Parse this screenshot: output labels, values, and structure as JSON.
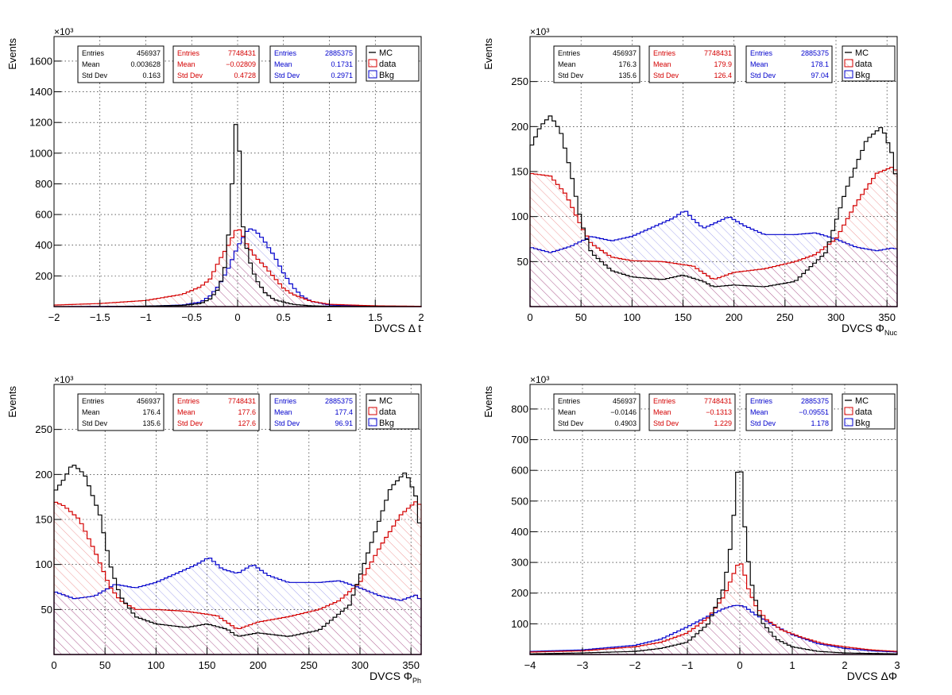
{
  "colors": {
    "mc": "#000000",
    "data": "#d40000",
    "bkg": "#0000cc",
    "grid": "#000000"
  },
  "chart_data": [
    {
      "type": "histogram",
      "xlabel": "DVCS   Δ t",
      "xlabel_sub": "",
      "ylabel": "Events",
      "exponent": "×10³",
      "xlim": [
        -2,
        2
      ],
      "ylim": [
        0,
        1760
      ],
      "xticks": [
        -2,
        -1.5,
        -1,
        -0.5,
        0,
        0.5,
        1,
        1.5,
        2
      ],
      "xtick_labels": [
        "−2",
        "−1.5",
        "−1",
        "−0.5",
        "0",
        "0.5",
        "1",
        "1.5",
        "2"
      ],
      "yticks": [
        200,
        400,
        600,
        800,
        1000,
        1200,
        1400,
        1600
      ],
      "ytick_labels": [
        "200",
        "400",
        "600",
        "800",
        "1000",
        "1200",
        "1400",
        "1600"
      ],
      "grid": true,
      "legend": {
        "position": "top-right",
        "entries": [
          "MC",
          "data",
          "Bkg"
        ]
      },
      "stats": [
        {
          "series": "MC",
          "Entries": "456937",
          "Mean": "0.003628",
          "Std Dev": "0.163"
        },
        {
          "series": "data",
          "Entries": "7748431",
          "Mean": "−0.02809",
          "Std Dev": "0.4728"
        },
        {
          "series": "Bkg",
          "Entries": "2885375",
          "Mean": "0.1731",
          "Std Dev": "0.2971"
        }
      ],
      "series": [
        {
          "name": "MC",
          "x": [
            -2,
            -1.5,
            -1,
            -0.6,
            -0.4,
            -0.3,
            -0.2,
            -0.12,
            -0.06,
            -0.03,
            0,
            0.03,
            0.06,
            0.1,
            0.15,
            0.2,
            0.3,
            0.4,
            0.6,
            0.8,
            1,
            2
          ],
          "y": [
            0,
            0,
            3,
            8,
            20,
            50,
            120,
            300,
            800,
            1160,
            1240,
            900,
            520,
            380,
            260,
            180,
            90,
            45,
            15,
            5,
            2,
            0
          ]
        },
        {
          "name": "data",
          "x": [
            -2,
            -1.5,
            -1,
            -0.6,
            -0.4,
            -0.3,
            -0.2,
            -0.1,
            -0.05,
            0,
            0.05,
            0.1,
            0.15,
            0.2,
            0.3,
            0.4,
            0.5,
            0.6,
            0.8,
            1,
            1.5,
            2
          ],
          "y": [
            10,
            20,
            40,
            80,
            130,
            180,
            300,
            400,
            460,
            520,
            470,
            410,
            360,
            320,
            260,
            190,
            120,
            80,
            35,
            15,
            5,
            2
          ]
        },
        {
          "name": "Bkg",
          "x": [
            -2,
            -1,
            -0.6,
            -0.4,
            -0.3,
            -0.2,
            -0.1,
            0,
            0.05,
            0.1,
            0.15,
            0.2,
            0.25,
            0.3,
            0.4,
            0.5,
            0.6,
            0.7,
            0.8,
            1,
            1.5,
            2
          ],
          "y": [
            0,
            3,
            10,
            30,
            70,
            140,
            250,
            390,
            440,
            490,
            510,
            490,
            460,
            420,
            330,
            220,
            130,
            70,
            35,
            10,
            2,
            0
          ]
        }
      ]
    },
    {
      "type": "histogram",
      "xlabel": "DVCS   Φ",
      "xlabel_sub": "Nuc",
      "ylabel": "Events",
      "exponent": "×10³",
      "xlim": [
        0,
        360
      ],
      "ylim": [
        0,
        300
      ],
      "xticks": [
        0,
        50,
        100,
        150,
        200,
        250,
        300,
        350
      ],
      "xtick_labels": [
        "0",
        "50",
        "100",
        "150",
        "200",
        "250",
        "300",
        "350"
      ],
      "yticks": [
        50,
        100,
        150,
        200,
        250
      ],
      "ytick_labels": [
        "50",
        "100",
        "150",
        "200",
        "250"
      ],
      "grid": true,
      "legend": {
        "position": "top-right",
        "entries": [
          "MC",
          "data",
          "Bkg"
        ]
      },
      "stats": [
        {
          "series": "MC",
          "Entries": "456937",
          "Mean": "176.3",
          "Std Dev": "135.6"
        },
        {
          "series": "data",
          "Entries": "7748431",
          "Mean": "179.9",
          "Std Dev": "126.4"
        },
        {
          "series": "Bkg",
          "Entries": "2885375",
          "Mean": "178.1",
          "Std Dev": "97.04"
        }
      ],
      "series": [
        {
          "name": "MC",
          "x": [
            0,
            10,
            20,
            30,
            40,
            50,
            60,
            80,
            100,
            130,
            150,
            170,
            180,
            200,
            230,
            260,
            290,
            310,
            330,
            345,
            355,
            360
          ],
          "y": [
            175,
            200,
            212,
            195,
            150,
            95,
            60,
            40,
            33,
            30,
            35,
            28,
            22,
            24,
            22,
            28,
            60,
            130,
            185,
            200,
            170,
            135
          ]
        },
        {
          "name": "data",
          "x": [
            0,
            20,
            35,
            50,
            60,
            80,
            100,
            130,
            160,
            180,
            200,
            230,
            260,
            280,
            300,
            320,
            340,
            355,
            360
          ],
          "y": [
            148,
            145,
            125,
            90,
            70,
            55,
            51,
            50,
            45,
            30,
            38,
            42,
            50,
            58,
            75,
            115,
            148,
            155,
            150
          ]
        },
        {
          "name": "Bkg",
          "x": [
            0,
            20,
            40,
            60,
            80,
            100,
            120,
            140,
            152,
            160,
            170,
            180,
            195,
            210,
            230,
            260,
            280,
            300,
            320,
            340,
            355,
            360
          ],
          "y": [
            66,
            60,
            67,
            78,
            73,
            78,
            88,
            98,
            107,
            97,
            87,
            92,
            100,
            90,
            80,
            80,
            82,
            75,
            66,
            62,
            65,
            64
          ]
        }
      ]
    },
    {
      "type": "histogram",
      "xlabel": "DVCS   Φ",
      "xlabel_sub": "Ph",
      "ylabel": "Events",
      "exponent": "×10³",
      "xlim": [
        0,
        360
      ],
      "ylim": [
        0,
        300
      ],
      "xticks": [
        0,
        50,
        100,
        150,
        200,
        250,
        300,
        350
      ],
      "xtick_labels": [
        "0",
        "50",
        "100",
        "150",
        "200",
        "250",
        "300",
        "350"
      ],
      "yticks": [
        50,
        100,
        150,
        200,
        250
      ],
      "ytick_labels": [
        "50",
        "100",
        "150",
        "200",
        "250"
      ],
      "grid": true,
      "legend": {
        "position": "top-right",
        "entries": [
          "MC",
          "data",
          "Bkg"
        ]
      },
      "stats": [
        {
          "series": "MC",
          "Entries": "456937",
          "Mean": "176.4",
          "Std Dev": "135.6"
        },
        {
          "series": "data",
          "Entries": "7748431",
          "Mean": "177.6",
          "Std Dev": "127.6"
        },
        {
          "series": "Bkg",
          "Entries": "2885375",
          "Mean": "177.4",
          "Std Dev": "96.91"
        }
      ],
      "series": [
        {
          "name": "MC",
          "x": [
            0,
            10,
            18,
            30,
            45,
            55,
            65,
            80,
            100,
            130,
            150,
            170,
            180,
            200,
            230,
            260,
            290,
            310,
            330,
            345,
            355,
            360
          ],
          "y": [
            180,
            195,
            212,
            200,
            155,
            100,
            65,
            42,
            34,
            30,
            34,
            28,
            20,
            24,
            20,
            27,
            55,
            120,
            185,
            203,
            175,
            130
          ]
        },
        {
          "name": "data",
          "x": [
            0,
            10,
            25,
            40,
            55,
            65,
            80,
            100,
            130,
            160,
            180,
            200,
            230,
            260,
            280,
            300,
            320,
            340,
            355,
            360
          ],
          "y": [
            170,
            165,
            150,
            115,
            75,
            60,
            50,
            50,
            48,
            43,
            28,
            36,
            42,
            50,
            60,
            80,
            120,
            155,
            170,
            165
          ]
        },
        {
          "name": "Bkg",
          "x": [
            0,
            20,
            40,
            60,
            80,
            100,
            120,
            140,
            152,
            165,
            180,
            195,
            210,
            230,
            260,
            280,
            300,
            320,
            340,
            355,
            360
          ],
          "y": [
            70,
            62,
            65,
            78,
            74,
            80,
            90,
            100,
            108,
            95,
            90,
            100,
            88,
            80,
            80,
            82,
            74,
            65,
            60,
            66,
            60
          ]
        }
      ]
    },
    {
      "type": "histogram",
      "xlabel": "DVCS   ΔΦ",
      "xlabel_sub": "",
      "ylabel": "Events",
      "exponent": "×10³",
      "xlim": [
        -4,
        3
      ],
      "ylim": [
        0,
        880
      ],
      "xticks": [
        -4,
        -3,
        -2,
        -1,
        0,
        1,
        2,
        3
      ],
      "xtick_labels": [
        "−4",
        "−3",
        "−2",
        "−1",
        "0",
        "1",
        "2",
        "3"
      ],
      "yticks": [
        100,
        200,
        300,
        400,
        500,
        600,
        700,
        800
      ],
      "ytick_labels": [
        "100",
        "200",
        "300",
        "400",
        "500",
        "600",
        "700",
        "800"
      ],
      "grid": true,
      "legend": {
        "position": "top-right",
        "entries": [
          "MC",
          "data",
          "Bkg"
        ]
      },
      "stats": [
        {
          "series": "MC",
          "Entries": "456937",
          "Mean": "−0.0146",
          "Std Dev": "0.4903"
        },
        {
          "series": "data",
          "Entries": "7748431",
          "Mean": "−0.1313",
          "Std Dev": "1.229"
        },
        {
          "series": "Bkg",
          "Entries": "2885375",
          "Mean": "−0.09551",
          "Std Dev": "1.178"
        }
      ],
      "series": [
        {
          "name": "MC",
          "x": [
            -4,
            -3,
            -2,
            -1.5,
            -1,
            -0.6,
            -0.3,
            -0.15,
            -0.05,
            0,
            0.05,
            0.1,
            0.2,
            0.4,
            0.7,
            1,
            1.5,
            2,
            3
          ],
          "y": [
            2,
            5,
            10,
            20,
            40,
            100,
            220,
            380,
            590,
            630,
            560,
            400,
            250,
            110,
            50,
            25,
            10,
            5,
            2
          ]
        },
        {
          "name": "data",
          "x": [
            -4,
            -3,
            -2,
            -1.5,
            -1,
            -0.6,
            -0.3,
            -0.15,
            -0.05,
            0,
            0.05,
            0.15,
            0.3,
            0.5,
            0.8,
            1.2,
            1.6,
            2,
            2.5,
            3
          ],
          "y": [
            8,
            12,
            25,
            40,
            70,
            120,
            190,
            250,
            290,
            300,
            290,
            220,
            160,
            115,
            80,
            55,
            35,
            25,
            15,
            10
          ]
        },
        {
          "name": "Bkg",
          "x": [
            -4,
            -3,
            -2,
            -1.5,
            -1,
            -0.6,
            -0.3,
            -0.1,
            0,
            0.1,
            0.3,
            0.6,
            1,
            1.5,
            2,
            2.5,
            3
          ],
          "y": [
            10,
            15,
            30,
            50,
            90,
            125,
            150,
            160,
            160,
            155,
            130,
            100,
            65,
            35,
            20,
            12,
            8
          ]
        }
      ]
    }
  ]
}
